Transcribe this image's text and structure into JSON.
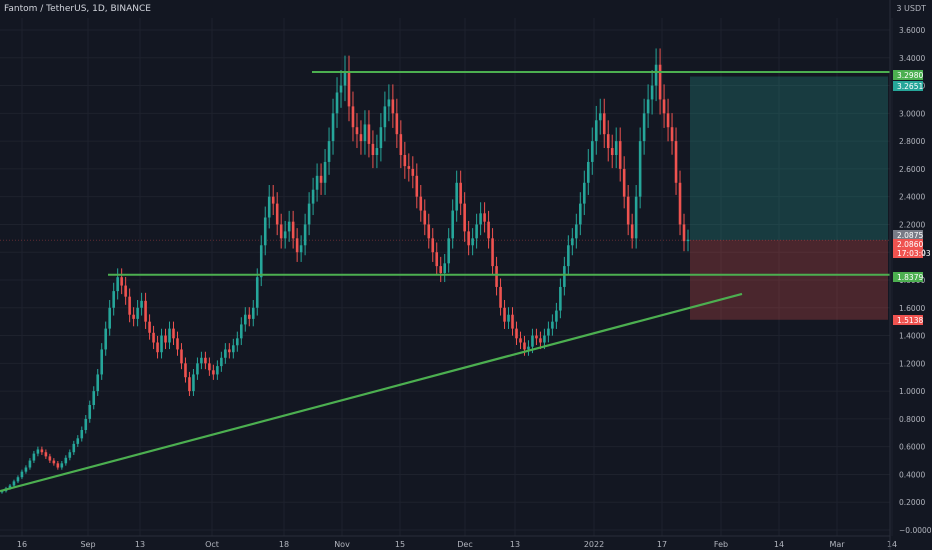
{
  "header": {
    "symbol_title": "Fantom / TetherUS, 1D, BINANCE"
  },
  "price_axis": {
    "currency": "3 USDT",
    "ticks": [
      "3.6000",
      "3.4000",
      "3.2000",
      "3.0000",
      "2.8000",
      "2.6000",
      "2.4000",
      "2.2000",
      "2.0000",
      "1.8000",
      "1.6000",
      "1.4000",
      "1.2000",
      "1.0000",
      "0.8000",
      "0.6000",
      "0.4000",
      "0.2000",
      "−0.0000"
    ],
    "markers": [
      {
        "text": "3.2980",
        "color": "#4caf50"
      },
      {
        "text": "3.2651",
        "color": "#26a69a"
      },
      {
        "text": "2.0875",
        "color": "#787b86"
      },
      {
        "text": "2.0860",
        "color": "#ef5350"
      },
      {
        "text": "17:03:03",
        "color": "#ef5350"
      },
      {
        "text": "1.8379",
        "color": "#4caf50"
      },
      {
        "text": "1.5138",
        "color": "#ef5350"
      }
    ]
  },
  "time_axis": {
    "ticks": [
      "16",
      "Sep",
      "13",
      "Oct",
      "18",
      "Nov",
      "15",
      "Dec",
      "13",
      "2022",
      "17",
      "Feb",
      "14",
      "Mar",
      "14"
    ]
  },
  "colors": {
    "up": "#26a69a",
    "down": "#ef5350",
    "line": "#4caf50",
    "background": "#131722",
    "grid": "#1e222d"
  },
  "chart_data": {
    "type": "candlestick",
    "title": "Fantom / TetherUS, 1D, BINANCE",
    "ylim": [
      0.0,
      3.6
    ],
    "grid": true,
    "price_levels": [
      {
        "price": 3.298,
        "color": "#4caf50"
      },
      {
        "price": 1.8379,
        "color": "#4caf50"
      }
    ],
    "trendline": {
      "from": [
        "16",
        0.28
      ],
      "to": [
        "Feb",
        1.7
      ],
      "color": "#4caf50"
    },
    "position_tool": {
      "target": 3.2651,
      "entry": 2.0875,
      "stop": 1.5138
    },
    "last_price": 2.086,
    "closes": [
      0.28,
      0.3,
      0.32,
      0.35,
      0.38,
      0.42,
      0.45,
      0.5,
      0.55,
      0.58,
      0.56,
      0.53,
      0.5,
      0.48,
      0.45,
      0.48,
      0.52,
      0.56,
      0.62,
      0.66,
      0.72,
      0.8,
      0.9,
      1.0,
      1.12,
      1.3,
      1.45,
      1.6,
      1.72,
      1.82,
      1.76,
      1.68,
      1.55,
      1.52,
      1.6,
      1.65,
      1.5,
      1.42,
      1.35,
      1.28,
      1.4,
      1.35,
      1.45,
      1.38,
      1.3,
      1.2,
      1.1,
      1.0,
      1.12,
      1.2,
      1.24,
      1.2,
      1.15,
      1.12,
      1.18,
      1.24,
      1.3,
      1.28,
      1.33,
      1.38,
      1.48,
      1.55,
      1.52,
      1.6,
      1.82,
      2.05,
      2.25,
      2.4,
      2.35,
      2.2,
      2.1,
      2.15,
      2.22,
      2.1,
      2.0,
      2.05,
      2.2,
      2.35,
      2.45,
      2.55,
      2.5,
      2.65,
      2.8,
      3.0,
      3.15,
      3.2,
      3.3,
      3.05,
      2.9,
      2.85,
      2.8,
      2.92,
      2.78,
      2.7,
      2.75,
      2.9,
      3.05,
      3.1,
      3.0,
      2.85,
      2.7,
      2.62,
      2.6,
      2.55,
      2.4,
      2.3,
      2.2,
      2.1,
      2.0,
      1.9,
      1.85,
      1.92,
      2.1,
      2.3,
      2.5,
      2.35,
      2.15,
      2.05,
      2.1,
      2.2,
      2.28,
      2.22,
      2.1,
      1.9,
      1.75,
      1.6,
      1.5,
      1.55,
      1.45,
      1.38,
      1.35,
      1.3,
      1.32,
      1.4,
      1.38,
      1.35,
      1.4,
      1.45,
      1.5,
      1.58,
      1.75,
      1.9,
      2.05,
      2.1,
      2.2,
      2.35,
      2.5,
      2.65,
      2.8,
      2.95,
      3.0,
      2.85,
      2.75,
      2.7,
      2.8,
      2.6,
      2.4,
      2.2,
      2.1,
      2.4,
      2.8,
      3.0,
      3.1,
      3.2,
      3.35,
      3.1,
      3.0,
      2.9,
      2.8,
      2.5,
      2.2,
      2.08,
      2.09
    ]
  }
}
